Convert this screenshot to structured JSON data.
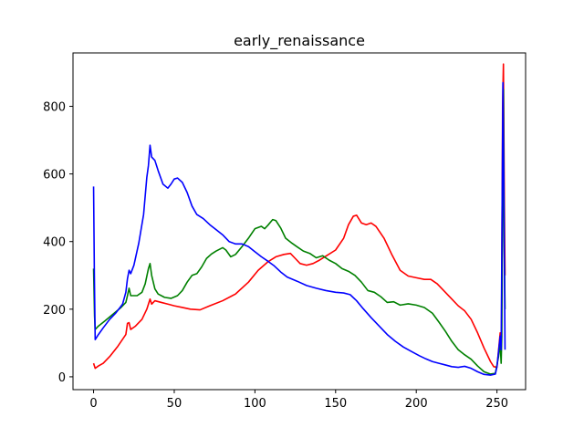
{
  "chart_data": {
    "type": "line",
    "title": "early_renaissance",
    "xlabel": "",
    "ylabel": "",
    "xlim": [
      -12.75,
      267.75
    ],
    "ylim": [
      -38,
      958
    ],
    "x_ticks": [
      0,
      50,
      100,
      150,
      200,
      250
    ],
    "y_ticks": [
      0,
      200,
      400,
      600,
      800
    ],
    "grid": false,
    "legend": "none",
    "series": [
      {
        "color": "#ff0000",
        "points": [
          [
            0,
            40
          ],
          [
            1,
            25
          ],
          [
            3,
            32
          ],
          [
            6,
            40
          ],
          [
            10,
            60
          ],
          [
            15,
            90
          ],
          [
            20,
            125
          ],
          [
            21,
            158
          ],
          [
            22,
            160
          ],
          [
            23,
            140
          ],
          [
            26,
            150
          ],
          [
            30,
            170
          ],
          [
            33,
            200
          ],
          [
            35,
            230
          ],
          [
            36,
            215
          ],
          [
            38,
            225
          ],
          [
            42,
            220
          ],
          [
            46,
            215
          ],
          [
            50,
            210
          ],
          [
            55,
            205
          ],
          [
            60,
            200
          ],
          [
            66,
            198
          ],
          [
            72,
            210
          ],
          [
            80,
            225
          ],
          [
            88,
            245
          ],
          [
            96,
            280
          ],
          [
            102,
            315
          ],
          [
            108,
            340
          ],
          [
            113,
            355
          ],
          [
            118,
            362
          ],
          [
            122,
            365
          ],
          [
            125,
            350
          ],
          [
            128,
            335
          ],
          [
            132,
            330
          ],
          [
            136,
            335
          ],
          [
            140,
            345
          ],
          [
            145,
            360
          ],
          [
            150,
            375
          ],
          [
            155,
            410
          ],
          [
            158,
            450
          ],
          [
            161,
            475
          ],
          [
            163,
            478
          ],
          [
            166,
            455
          ],
          [
            169,
            450
          ],
          [
            172,
            455
          ],
          [
            175,
            445
          ],
          [
            180,
            410
          ],
          [
            185,
            360
          ],
          [
            190,
            315
          ],
          [
            195,
            298
          ],
          [
            200,
            293
          ],
          [
            205,
            288
          ],
          [
            209,
            288
          ],
          [
            213,
            275
          ],
          [
            217,
            255
          ],
          [
            222,
            230
          ],
          [
            226,
            210
          ],
          [
            230,
            195
          ],
          [
            234,
            170
          ],
          [
            238,
            130
          ],
          [
            242,
            85
          ],
          [
            246,
            45
          ],
          [
            248,
            30
          ],
          [
            250,
            28
          ],
          [
            252,
            130
          ],
          [
            252.8,
            110
          ],
          [
            253.5,
            800
          ],
          [
            254,
            925
          ],
          [
            254.6,
            500
          ],
          [
            255,
            300
          ]
        ]
      },
      {
        "color": "#008000",
        "points": [
          [
            0,
            320
          ],
          [
            0.6,
            180
          ],
          [
            1,
            140
          ],
          [
            3,
            150
          ],
          [
            7,
            165
          ],
          [
            12,
            185
          ],
          [
            17,
            205
          ],
          [
            20,
            220
          ],
          [
            21,
            240
          ],
          [
            22,
            262
          ],
          [
            23,
            240
          ],
          [
            27,
            240
          ],
          [
            30,
            250
          ],
          [
            32,
            275
          ],
          [
            34,
            320
          ],
          [
            35,
            335
          ],
          [
            36,
            300
          ],
          [
            38,
            260
          ],
          [
            40,
            245
          ],
          [
            44,
            235
          ],
          [
            48,
            232
          ],
          [
            52,
            240
          ],
          [
            55,
            255
          ],
          [
            58,
            280
          ],
          [
            61,
            300
          ],
          [
            64,
            305
          ],
          [
            67,
            325
          ],
          [
            70,
            350
          ],
          [
            73,
            363
          ],
          [
            76,
            372
          ],
          [
            80,
            382
          ],
          [
            82,
            375
          ],
          [
            85,
            355
          ],
          [
            88,
            362
          ],
          [
            92,
            385
          ],
          [
            96,
            410
          ],
          [
            100,
            438
          ],
          [
            104,
            445
          ],
          [
            106,
            438
          ],
          [
            108,
            448
          ],
          [
            111,
            465
          ],
          [
            113,
            462
          ],
          [
            116,
            440
          ],
          [
            119,
            410
          ],
          [
            123,
            395
          ],
          [
            126,
            385
          ],
          [
            130,
            372
          ],
          [
            134,
            365
          ],
          [
            138,
            352
          ],
          [
            142,
            358
          ],
          [
            146,
            345
          ],
          [
            150,
            335
          ],
          [
            154,
            320
          ],
          [
            158,
            312
          ],
          [
            162,
            300
          ],
          [
            166,
            280
          ],
          [
            170,
            255
          ],
          [
            174,
            250
          ],
          [
            178,
            237
          ],
          [
            182,
            220
          ],
          [
            186,
            222
          ],
          [
            190,
            212
          ],
          [
            195,
            216
          ],
          [
            200,
            212
          ],
          [
            205,
            205
          ],
          [
            210,
            188
          ],
          [
            214,
            162
          ],
          [
            218,
            135
          ],
          [
            222,
            105
          ],
          [
            226,
            80
          ],
          [
            230,
            65
          ],
          [
            234,
            52
          ],
          [
            238,
            32
          ],
          [
            242,
            15
          ],
          [
            246,
            8
          ],
          [
            249,
            10
          ],
          [
            251,
            60
          ],
          [
            252,
            100
          ],
          [
            252.6,
            40
          ],
          [
            253,
            120
          ],
          [
            253.6,
            600
          ],
          [
            254,
            850
          ],
          [
            254.5,
            400
          ],
          [
            255,
            200
          ]
        ]
      },
      {
        "color": "#0000ff",
        "points": [
          [
            0,
            563
          ],
          [
            0.5,
            300
          ],
          [
            1,
            110
          ],
          [
            3,
            125
          ],
          [
            6,
            145
          ],
          [
            10,
            170
          ],
          [
            14,
            190
          ],
          [
            18,
            215
          ],
          [
            20,
            250
          ],
          [
            21,
            290
          ],
          [
            22,
            315
          ],
          [
            23,
            305
          ],
          [
            25,
            330
          ],
          [
            28,
            395
          ],
          [
            31,
            480
          ],
          [
            33,
            590
          ],
          [
            34,
            625
          ],
          [
            35,
            685
          ],
          [
            36,
            650
          ],
          [
            38,
            640
          ],
          [
            40,
            610
          ],
          [
            43,
            570
          ],
          [
            46,
            558
          ],
          [
            48,
            570
          ],
          [
            50,
            585
          ],
          [
            52,
            588
          ],
          [
            55,
            575
          ],
          [
            58,
            545
          ],
          [
            61,
            505
          ],
          [
            64,
            480
          ],
          [
            68,
            468
          ],
          [
            72,
            450
          ],
          [
            76,
            435
          ],
          [
            80,
            420
          ],
          [
            84,
            400
          ],
          [
            88,
            393
          ],
          [
            92,
            393
          ],
          [
            96,
            385
          ],
          [
            100,
            370
          ],
          [
            104,
            355
          ],
          [
            108,
            342
          ],
          [
            112,
            328
          ],
          [
            116,
            310
          ],
          [
            120,
            295
          ],
          [
            126,
            283
          ],
          [
            132,
            270
          ],
          [
            138,
            262
          ],
          [
            144,
            255
          ],
          [
            150,
            250
          ],
          [
            155,
            248
          ],
          [
            159,
            243
          ],
          [
            163,
            225
          ],
          [
            167,
            202
          ],
          [
            172,
            175
          ],
          [
            177,
            150
          ],
          [
            182,
            125
          ],
          [
            187,
            105
          ],
          [
            192,
            88
          ],
          [
            197,
            75
          ],
          [
            202,
            62
          ],
          [
            206,
            53
          ],
          [
            210,
            45
          ],
          [
            214,
            40
          ],
          [
            218,
            35
          ],
          [
            222,
            30
          ],
          [
            226,
            28
          ],
          [
            230,
            31
          ],
          [
            234,
            25
          ],
          [
            238,
            15
          ],
          [
            242,
            7
          ],
          [
            246,
            5
          ],
          [
            249,
            8
          ],
          [
            250,
            30
          ],
          [
            251,
            75
          ],
          [
            252,
            120
          ],
          [
            252.6,
            80
          ],
          [
            253.2,
            500
          ],
          [
            253.7,
            870
          ],
          [
            254.2,
            600
          ],
          [
            255,
            80
          ]
        ]
      }
    ]
  }
}
